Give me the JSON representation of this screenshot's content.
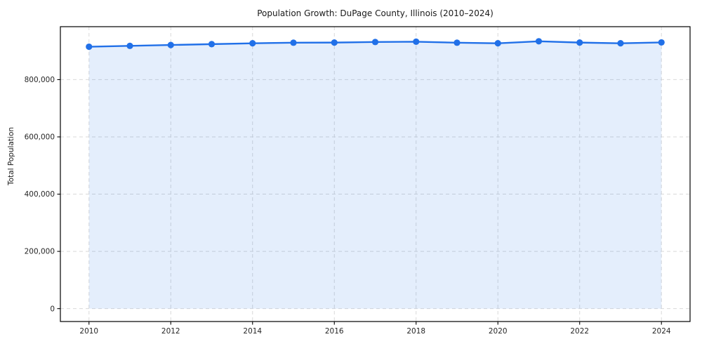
{
  "chart_data": {
    "type": "line",
    "title": "Population Growth: DuPage County, Illinois (2010–2024)",
    "xlabel": "",
    "ylabel": "Total Population",
    "x": [
      2010,
      2011,
      2012,
      2013,
      2014,
      2015,
      2016,
      2017,
      2018,
      2019,
      2020,
      2021,
      2022,
      2023,
      2024
    ],
    "series": [
      {
        "name": "Total Population",
        "values": [
          915000,
          918000,
          921000,
          924000,
          927000,
          929000,
          929500,
          931500,
          932500,
          929000,
          927000,
          934000,
          929500,
          927000,
          930000
        ]
      }
    ],
    "area_fill": true,
    "markers": true,
    "legend_position": "none",
    "xlim": [
      2009.3,
      2024.7
    ],
    "ylim": [
      -45000,
      985000
    ],
    "xticks": [
      2010,
      2012,
      2014,
      2016,
      2018,
      2020,
      2022,
      2024
    ],
    "xtick_labels": [
      "2010",
      "2012",
      "2014",
      "2016",
      "2018",
      "2020",
      "2022",
      "2024"
    ],
    "yticks": [
      0,
      200000,
      400000,
      600000,
      800000
    ],
    "ytick_labels": [
      "0",
      "200,000",
      "400,000",
      "600,000",
      "800,000"
    ],
    "colors": {
      "line": "#2170e8",
      "marker": "#2170e8",
      "fill": "rgba(33, 112, 232, 0.12)",
      "grid": "#d9d9d9",
      "spine": "#000000",
      "tick_label": "#262626",
      "title": "#1a1a1a"
    },
    "grid": {
      "on": true,
      "style": "dashed"
    }
  }
}
